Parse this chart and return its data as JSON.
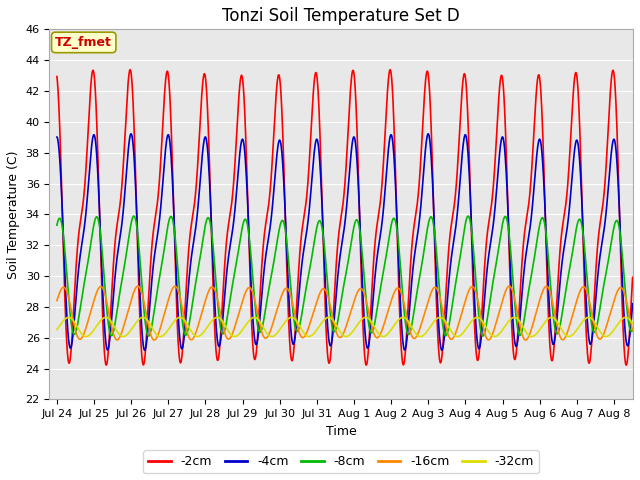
{
  "title": "Tonzi Soil Temperature Set D",
  "xlabel": "Time",
  "ylabel": "Soil Temperature (C)",
  "ylim": [
    22,
    46
  ],
  "yticks": [
    22,
    24,
    26,
    28,
    30,
    32,
    34,
    36,
    38,
    40,
    42,
    44,
    46
  ],
  "xtick_positions": [
    0,
    1,
    2,
    3,
    4,
    5,
    6,
    7,
    8,
    9,
    10,
    11,
    12,
    13,
    14,
    15
  ],
  "xtick_labels": [
    "Jul 24",
    "Jul 25",
    "Jul 26",
    "Jul 27",
    "Jul 28",
    "Jul 29",
    "Jul 30",
    "Jul 31",
    "Aug 1",
    "Aug 2",
    "Aug 3",
    "Aug 4",
    "Aug 5",
    "Aug 6",
    "Aug 7",
    "Aug 8"
  ],
  "series_colors": [
    "#ff0000",
    "#0000cc",
    "#00bb00",
    "#ff8800",
    "#dddd00"
  ],
  "series_labels": [
    "-2cm",
    "-4cm",
    "-8cm",
    "-16cm",
    "-32cm"
  ],
  "line_width": 1.2,
  "annotation_text": "TZ_fmet",
  "annotation_color": "#cc0000",
  "annotation_bg": "#ffffcc",
  "annotation_edge": "#999900",
  "plot_bg": "#e8e8e8",
  "fig_bg": "#ffffff",
  "grid_color": "#ffffff",
  "title_fontsize": 12,
  "label_fontsize": 9,
  "tick_fontsize": 8,
  "legend_fontsize": 9
}
